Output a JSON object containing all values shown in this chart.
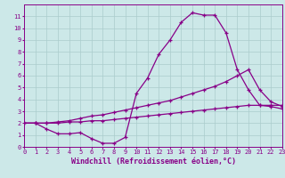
{
  "xlabel": "Windchill (Refroidissement éolien,°C)",
  "background_color": "#cce8e8",
  "grid_color": "#aacccc",
  "line_color": "#880088",
  "xlim": [
    0,
    23
  ],
  "ylim": [
    0,
    12
  ],
  "xticks": [
    0,
    1,
    2,
    3,
    4,
    5,
    6,
    7,
    8,
    9,
    10,
    11,
    12,
    13,
    14,
    15,
    16,
    17,
    18,
    19,
    20,
    21,
    22,
    23
  ],
  "yticks": [
    0,
    1,
    2,
    3,
    4,
    5,
    6,
    7,
    8,
    9,
    10,
    11
  ],
  "line1_x": [
    0,
    1,
    2,
    3,
    4,
    5,
    6,
    7,
    8,
    9,
    10,
    11,
    12,
    13,
    14,
    15,
    16,
    17,
    18,
    19,
    20,
    21,
    22,
    23
  ],
  "line1_y": [
    2.0,
    2.0,
    1.5,
    1.1,
    1.1,
    1.2,
    0.7,
    0.3,
    0.3,
    0.8,
    4.5,
    5.8,
    7.8,
    9.0,
    10.5,
    11.3,
    11.1,
    11.1,
    9.6,
    6.5,
    4.8,
    3.5,
    3.4,
    3.2
  ],
  "line2_x": [
    0,
    1,
    2,
    3,
    4,
    5,
    6,
    7,
    8,
    9,
    10,
    11,
    12,
    13,
    14,
    15,
    16,
    17,
    18,
    19,
    20,
    21,
    22,
    23
  ],
  "line2_y": [
    2.0,
    2.0,
    2.0,
    2.1,
    2.2,
    2.4,
    2.6,
    2.7,
    2.9,
    3.1,
    3.3,
    3.5,
    3.7,
    3.9,
    4.2,
    4.5,
    4.8,
    5.1,
    5.5,
    6.0,
    6.5,
    4.8,
    3.8,
    3.4
  ],
  "line3_x": [
    0,
    1,
    2,
    3,
    4,
    5,
    6,
    7,
    8,
    9,
    10,
    11,
    12,
    13,
    14,
    15,
    16,
    17,
    18,
    19,
    20,
    21,
    22,
    23
  ],
  "line3_y": [
    2.0,
    2.0,
    2.0,
    2.0,
    2.1,
    2.1,
    2.2,
    2.2,
    2.3,
    2.4,
    2.5,
    2.6,
    2.7,
    2.8,
    2.9,
    3.0,
    3.1,
    3.2,
    3.3,
    3.4,
    3.5,
    3.5,
    3.5,
    3.5
  ],
  "marker": "+",
  "markersize": 3,
  "linewidth": 0.9,
  "tick_fontsize": 5,
  "xlabel_fontsize": 6
}
